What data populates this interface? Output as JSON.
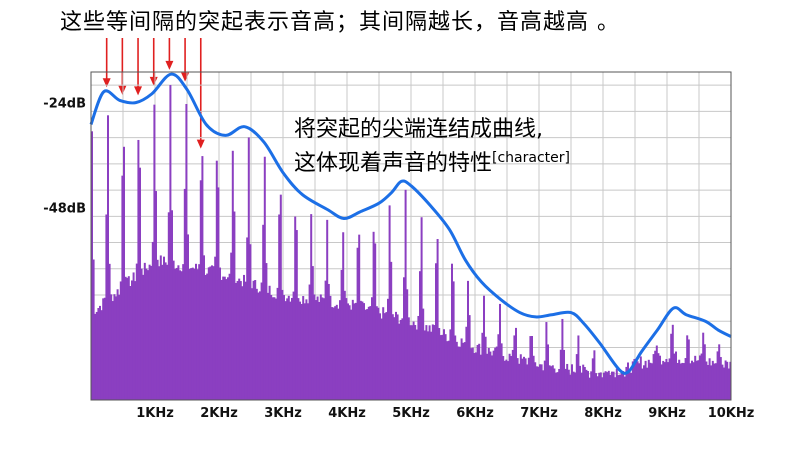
{
  "title": "这些等间隔的突起表示音高；其间隔越长，音高越高 。",
  "annotation": {
    "line1": "将突起的尖端连结成曲线,",
    "line2": "这体现着声音的特性",
    "superscript": "[character]"
  },
  "colors": {
    "spectrum": "#8b3fc1",
    "envelope": "#1c6fe6",
    "arrows": "#e02020",
    "grid": "#c8c8c8"
  },
  "chart_data": {
    "type": "area",
    "xlabel": "",
    "ylabel": "",
    "x_ticks": [
      {
        "value": 1000,
        "label": "1KHz"
      },
      {
        "value": 2000,
        "label": "2KHz"
      },
      {
        "value": 3000,
        "label": "3KHz"
      },
      {
        "value": 4000,
        "label": "4KHz"
      },
      {
        "value": 5000,
        "label": "5KHz"
      },
      {
        "value": 6000,
        "label": "6KHz"
      },
      {
        "value": 7000,
        "label": "7KHz"
      },
      {
        "value": 8000,
        "label": "8KHz"
      },
      {
        "value": 9000,
        "label": "9KHz"
      },
      {
        "value": 10000,
        "label": "10KHz"
      }
    ],
    "y_ticks": [
      {
        "value": -24,
        "label": "-24dB"
      },
      {
        "value": -48,
        "label": "-48dB"
      }
    ],
    "xlim": [
      0,
      10000
    ],
    "ylim": [
      -92,
      -17
    ],
    "grid": true,
    "harmonic_spacing_hz": 245,
    "spectrum_floor": [
      {
        "x": 0,
        "y": -72
      },
      {
        "x": 1000,
        "y": -60
      },
      {
        "x": 2000,
        "y": -63
      },
      {
        "x": 3000,
        "y": -68
      },
      {
        "x": 4000,
        "y": -70
      },
      {
        "x": 5000,
        "y": -74
      },
      {
        "x": 6000,
        "y": -80
      },
      {
        "x": 7000,
        "y": -84
      },
      {
        "x": 8000,
        "y": -86
      },
      {
        "x": 9000,
        "y": -82
      },
      {
        "x": 10000,
        "y": -84
      }
    ],
    "arrow_peaks_hz": [
      245,
      490,
      735,
      980,
      1225,
      1470,
      1715
    ],
    "series": [
      {
        "type": "line",
        "points": [
          {
            "x": 0,
            "y": -29
          },
          {
            "x": 200,
            "y": -21.5
          },
          {
            "x": 450,
            "y": -23.5
          },
          {
            "x": 700,
            "y": -24
          },
          {
            "x": 950,
            "y": -22
          },
          {
            "x": 1250,
            "y": -17.5
          },
          {
            "x": 1500,
            "y": -21
          },
          {
            "x": 1800,
            "y": -29
          },
          {
            "x": 2100,
            "y": -31.5
          },
          {
            "x": 2400,
            "y": -29.5
          },
          {
            "x": 2700,
            "y": -33
          },
          {
            "x": 3000,
            "y": -40
          },
          {
            "x": 3300,
            "y": -45
          },
          {
            "x": 3700,
            "y": -48.5
          },
          {
            "x": 3950,
            "y": -50.5
          },
          {
            "x": 4200,
            "y": -49
          },
          {
            "x": 4500,
            "y": -47
          },
          {
            "x": 4700,
            "y": -44.5
          },
          {
            "x": 4850,
            "y": -42
          },
          {
            "x": 5000,
            "y": -43
          },
          {
            "x": 5300,
            "y": -47.5
          },
          {
            "x": 5600,
            "y": -53
          },
          {
            "x": 5850,
            "y": -60
          },
          {
            "x": 6100,
            "y": -65
          },
          {
            "x": 6400,
            "y": -69
          },
          {
            "x": 6700,
            "y": -72
          },
          {
            "x": 6950,
            "y": -73
          },
          {
            "x": 7200,
            "y": -72.5
          },
          {
            "x": 7500,
            "y": -72
          },
          {
            "x": 7700,
            "y": -74.5
          },
          {
            "x": 7950,
            "y": -79
          },
          {
            "x": 8250,
            "y": -85
          },
          {
            "x": 8400,
            "y": -85.5
          },
          {
            "x": 8600,
            "y": -81
          },
          {
            "x": 8850,
            "y": -76
          },
          {
            "x": 9100,
            "y": -71
          },
          {
            "x": 9300,
            "y": -72.5
          },
          {
            "x": 9600,
            "y": -74
          },
          {
            "x": 9800,
            "y": -76
          },
          {
            "x": 10000,
            "y": -77.5
          }
        ]
      }
    ]
  }
}
